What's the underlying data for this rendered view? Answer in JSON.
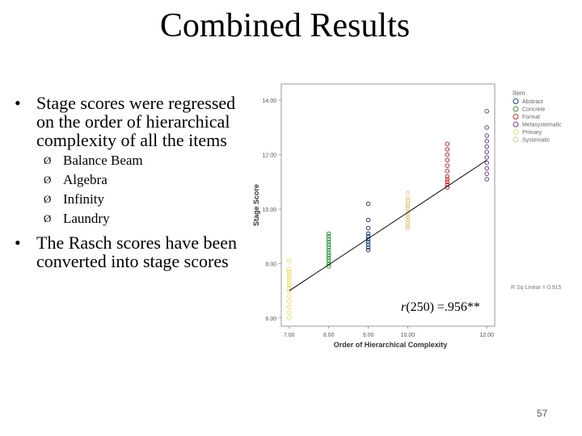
{
  "slide": {
    "title": "Combined Results",
    "bullets": [
      {
        "text": "Stage scores were regressed on the order of hierarchical complexity of all the items",
        "subitems": [
          "Balance Beam",
          "Algebra",
          "Infinity",
          "Laundry"
        ]
      },
      {
        "text": "The Rasch scores have been converted into stage scores",
        "subitems": []
      }
    ],
    "bullet_symbol": "•",
    "sub_bullet_symbol": "Ø",
    "correlation_prefix": "r",
    "correlation_value": "(250) =.956**",
    "page_number": "57"
  },
  "chart_data": {
    "type": "scatter",
    "xlabel": "Order of Hierarchical Complexity",
    "ylabel": "Stage Score",
    "x_ticks": [
      "7.00",
      "8.00",
      "9.00",
      "10.00",
      "12.00"
    ],
    "x_tick_values": [
      7,
      8,
      9,
      10,
      12
    ],
    "y_ticks": [
      "6.00",
      "8.00",
      "10.00",
      "12.00",
      "14.00"
    ],
    "y_tick_values": [
      6,
      8,
      10,
      12,
      14
    ],
    "xlim": [
      6.8,
      12.2
    ],
    "ylim": [
      5.7,
      14.6
    ],
    "legend_title": "Item",
    "legend_position": "top-right",
    "series": [
      {
        "name": "Abstract",
        "color": "#1a3f8f",
        "x": 9,
        "values": [
          8.5,
          8.6,
          8.7,
          8.8,
          8.9,
          9.0,
          9.1,
          9.3,
          9.6,
          10.2
        ]
      },
      {
        "name": "Concrete",
        "color": "#2a9a3a",
        "x": 8,
        "values": [
          7.9,
          8.0,
          8.1,
          8.2,
          8.3,
          8.4,
          8.5,
          8.6,
          8.7,
          8.8,
          8.9,
          9.0,
          9.1
        ]
      },
      {
        "name": "Formal",
        "color": "#d62828",
        "x": 11,
        "values": [
          10.8,
          10.9,
          11.0,
          11.1,
          11.2,
          11.4,
          11.6,
          11.8,
          12.0,
          12.2,
          12.4
        ]
      },
      {
        "name": "Metasystematic",
        "color": "#7a3f9a",
        "x": 12,
        "values": [
          11.1,
          11.3,
          11.5,
          11.7,
          11.9,
          12.1,
          12.3,
          12.5,
          12.7,
          13.0,
          13.6
        ]
      },
      {
        "name": "Primary",
        "color": "#f3e16a",
        "x": 7,
        "values": [
          6.0,
          6.2,
          6.4,
          6.6,
          6.8,
          7.0,
          7.1,
          7.2,
          7.3,
          7.4,
          7.5,
          7.6,
          7.7,
          7.8,
          8.1
        ]
      },
      {
        "name": "Systematic",
        "color": "#e8c98a",
        "x": 10,
        "values": [
          9.3,
          9.4,
          9.5,
          9.6,
          9.7,
          9.8,
          9.9,
          10.0,
          10.1,
          10.2,
          10.3,
          10.4,
          10.6
        ]
      }
    ],
    "fit_line": {
      "x": [
        7,
        12
      ],
      "y": [
        7.0,
        11.8
      ],
      "color": "#000000"
    },
    "fit_label": "R Sq Linear = 0.915"
  }
}
